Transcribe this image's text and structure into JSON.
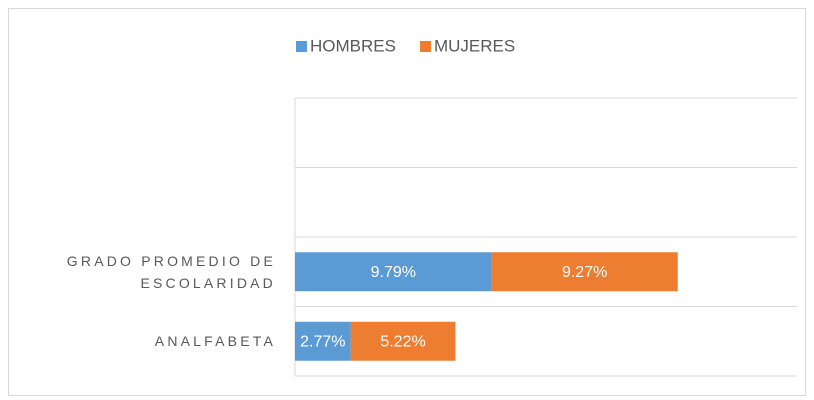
{
  "chart_data": {
    "type": "stacked_barh",
    "categories": [
      null,
      null,
      "GRADO PROMEDIO DE ESCOLARIDAD",
      "ANALFABETA"
    ],
    "series": [
      {
        "name": "HOMBRES",
        "color": "#5b9bd5",
        "values": [
          null,
          null,
          9.79,
          2.77
        ],
        "value_labels": [
          null,
          null,
          "9.79%",
          "2.77%"
        ]
      },
      {
        "name": "MUJERES",
        "color": "#ed7d31",
        "values": [
          null,
          null,
          9.27,
          5.22
        ],
        "value_labels": [
          null,
          null,
          "9.27%",
          "5.22%"
        ]
      }
    ],
    "xlim": [
      0,
      25
    ],
    "legend": "top"
  }
}
